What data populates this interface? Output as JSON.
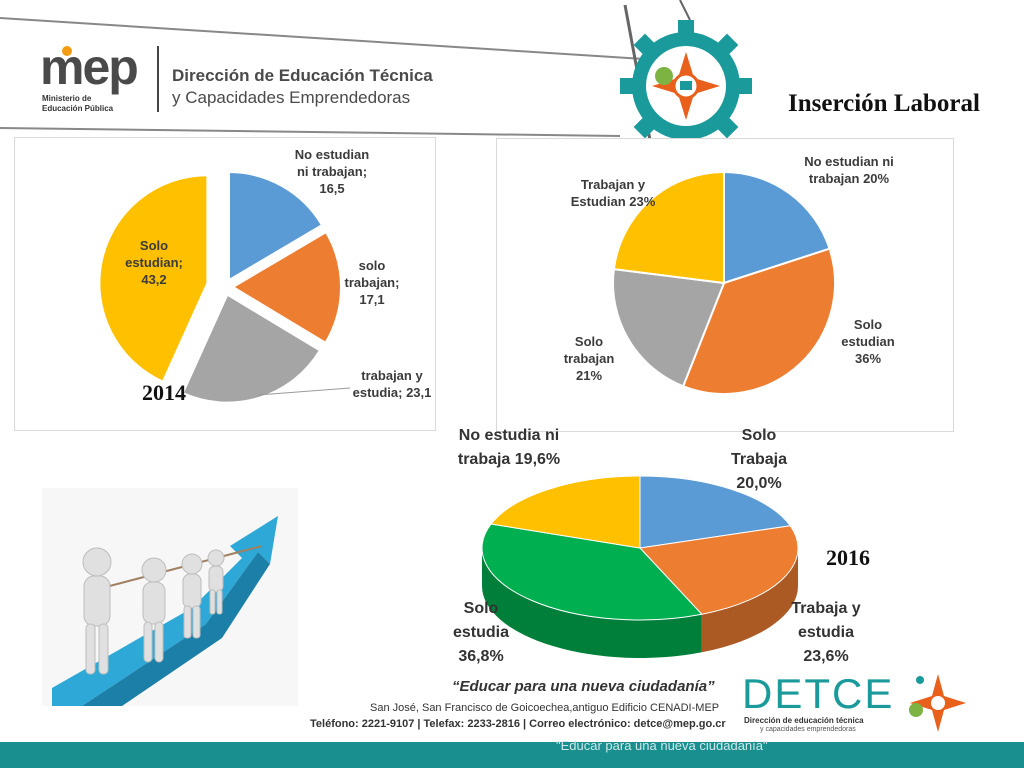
{
  "header": {
    "logo_text": "mep",
    "ministry_line1": "Ministerio de",
    "ministry_line2": "Educación Pública",
    "dept_line1": "Dirección de Educación Técnica",
    "dept_line2": "y Capacidades Emprendedoras",
    "page_title": "Inserción Laboral"
  },
  "chart_data": [
    {
      "type": "pie",
      "year_label": "2014",
      "labels": [
        "No estudian ni trabajan; 16,5",
        "solo trabajan; 17,1",
        "trabajan y estudia; 23,1",
        "Solo estudian; 43,2"
      ],
      "values": [
        16.5,
        17.1,
        23.1,
        43.2
      ],
      "colors": [
        "#5b9bd5",
        "#ed7d31",
        "#a5a5a5",
        "#ffc000"
      ]
    },
    {
      "type": "pie",
      "labels": [
        "No estudian ni trabajan 20%",
        "Solo estudian 36%",
        "Solo trabajan 21%",
        "Trabajan y Estudian 23%"
      ],
      "values": [
        20,
        36,
        21,
        23
      ],
      "colors": [
        "#5b9bd5",
        "#ed7d31",
        "#a5a5a5",
        "#ffc000"
      ]
    },
    {
      "type": "pie",
      "year_label": "2016",
      "labels": [
        "Solo Trabaja 20,0%",
        "Trabaja y estudia 23,6%",
        "Solo estudia 36,8%",
        "No estudia ni trabaja 19,6%"
      ],
      "values": [
        20.0,
        23.6,
        36.8,
        19.6
      ],
      "colors": [
        "#5b9bd5",
        "#ed7d31",
        "#00b050",
        "#ffc000"
      ]
    }
  ],
  "footer": {
    "slogan": "“Educar para una nueva ciudadanía”",
    "address": "San José, San Francisco de Goicoechea,antiguo Edificio CENADI-MEP",
    "contact": "Teléfono: 2221-9107 | Telefax: 2233-2816 | Correo electrónico: detce@mep.go.cr",
    "detce_logo": "DETCE",
    "detce_sub1": "Dirección de educación técnica",
    "detce_sub2": "y capacidades emprendedoras",
    "bottom_slogan": "\"Educar para una nueva ciudadanía\""
  },
  "colors": {
    "teal": "#1a8f8f",
    "mep_gray": "#555555",
    "mep_orange": "#f39c12"
  }
}
